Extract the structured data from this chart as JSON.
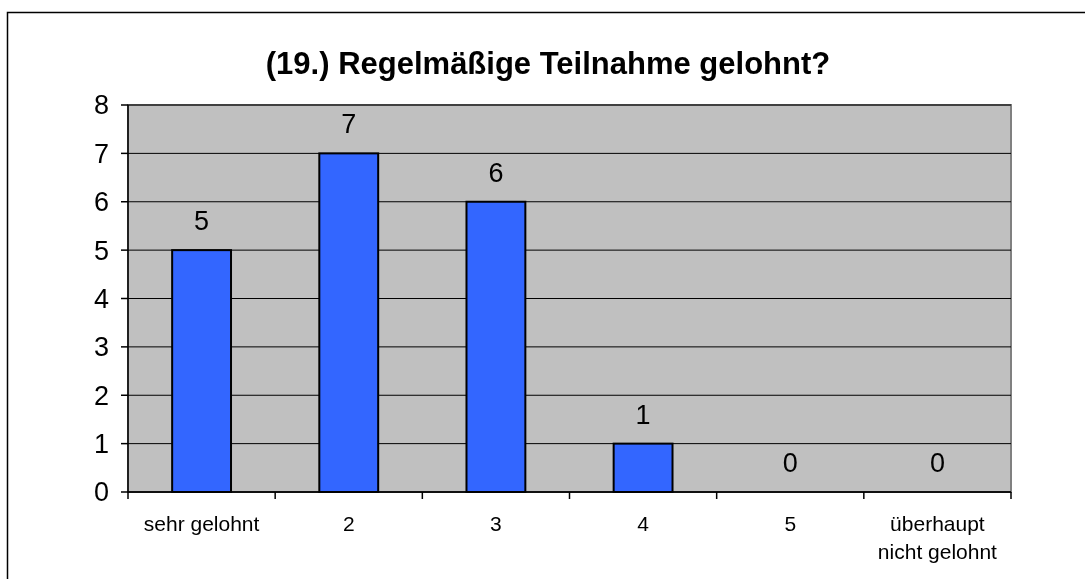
{
  "chart_data": {
    "type": "bar",
    "title": "(19.) Regelmäßige Teilnahme gelohnt?",
    "categories": [
      "sehr gelohnt",
      "2",
      "3",
      "4",
      "5",
      "überhaupt nicht gelohnt"
    ],
    "values": [
      5,
      7,
      6,
      1,
      0,
      0
    ],
    "color": "#3366ff",
    "ylim": [
      0,
      8
    ],
    "yticks": [
      0,
      1,
      2,
      3,
      4,
      5,
      6,
      7,
      8
    ],
    "grid": "y",
    "data_labels": true
  }
}
